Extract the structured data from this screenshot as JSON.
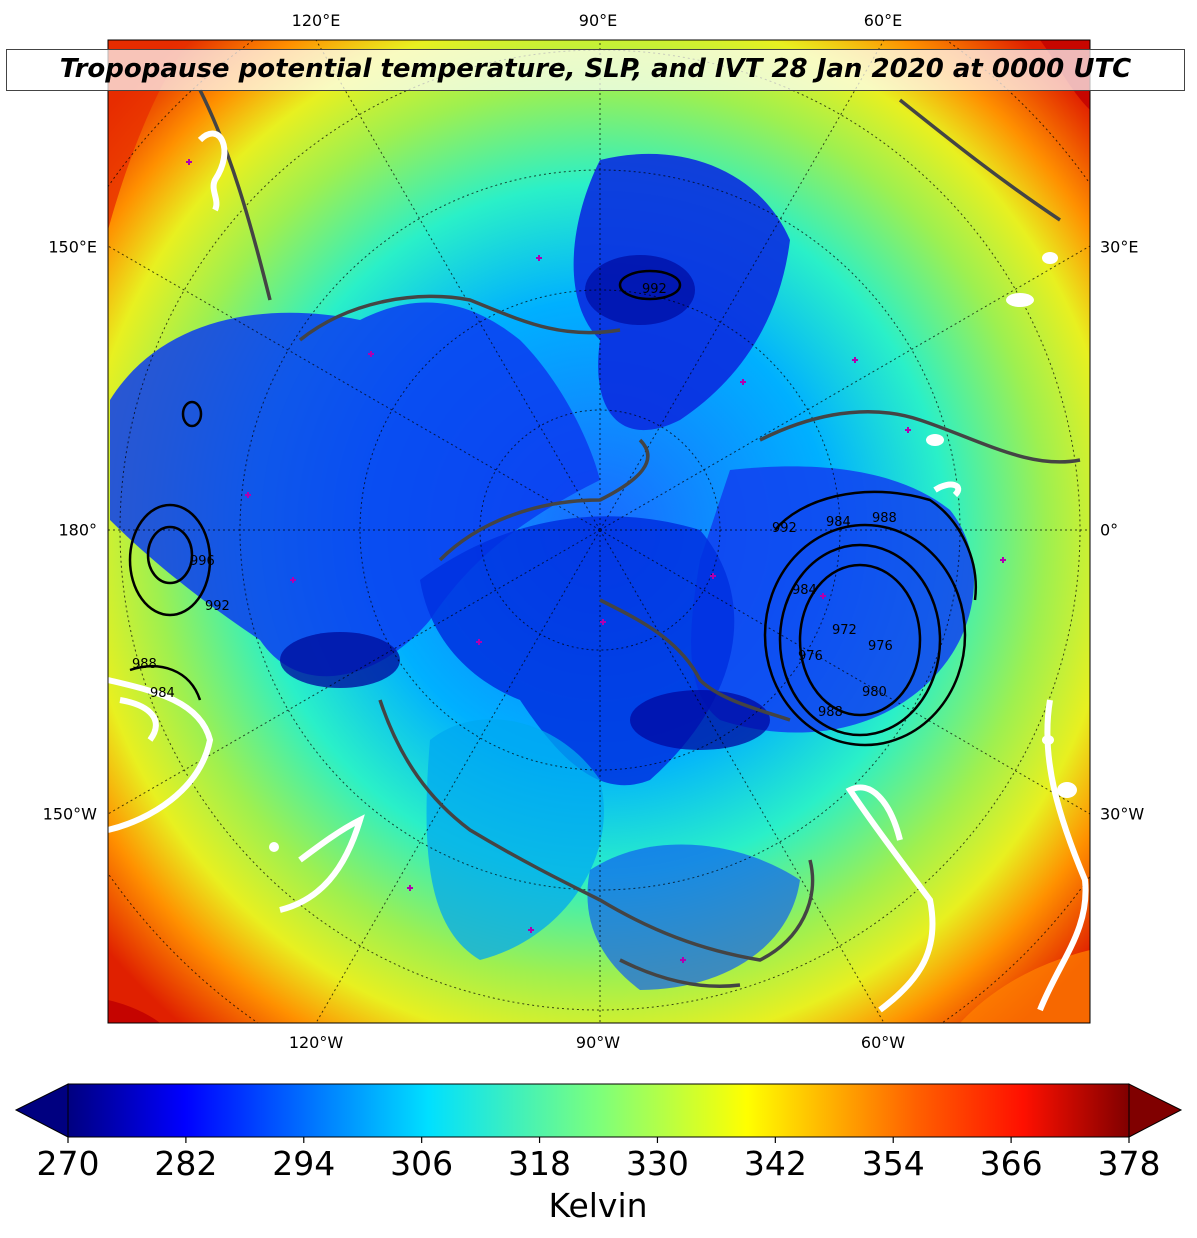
{
  "title": "Tropopause potential temperature, SLP, and IVT 28 Jan 2020 at 0000 UTC",
  "longitude_labels": {
    "top": [
      "120°E",
      "90°E",
      "60°E"
    ],
    "bottom": [
      "120°W",
      "90°W",
      "60°W"
    ],
    "left": [
      "150°E",
      "180°",
      "150°W"
    ],
    "right": [
      "30°E",
      "0°",
      "30°W"
    ]
  },
  "slp_contour_labels": [
    "992",
    "992",
    "984",
    "988",
    "984",
    "976",
    "972",
    "976",
    "980",
    "988",
    "992",
    "996",
    "988",
    "984"
  ],
  "colorbar": {
    "label": "Kelvin",
    "min": 270,
    "max": 378,
    "ticks": [
      "270",
      "282",
      "294",
      "306",
      "318",
      "330",
      "342",
      "354",
      "366",
      "378"
    ],
    "colormap": "jet",
    "extend": "both"
  },
  "colors": {
    "cold": "#0000c8",
    "cool": "#00b0ff",
    "mid": "#2cf0c8",
    "warm": "#9ef050",
    "hot": "#e02000",
    "coastline": "#444444",
    "markers": "#b000b0",
    "ivt_contour": "#ffffff",
    "slp_contour": "#000000"
  }
}
